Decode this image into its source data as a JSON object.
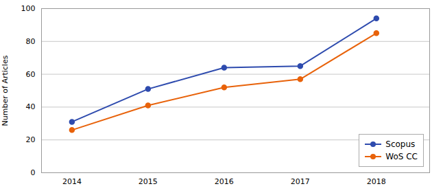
{
  "chart_data": {
    "type": "line",
    "x": [
      2014,
      2015,
      2016,
      2017,
      2018
    ],
    "series": [
      {
        "name": "Scopus",
        "color": "#2E4BAE",
        "values": [
          31,
          51,
          64,
          65,
          94
        ]
      },
      {
        "name": "WoS CC",
        "color": "#E8620A",
        "values": [
          26,
          41,
          52,
          57,
          85
        ]
      }
    ],
    "ylabel": "Number of Articles",
    "xlim": [
      2013.6,
      2018.7
    ],
    "xticks": [
      2014,
      2015,
      2016,
      2017,
      2018
    ],
    "ylim": [
      0,
      100
    ],
    "yticks": [
      0,
      20,
      40,
      60,
      80,
      100
    ],
    "grid": true,
    "legend": "lower right",
    "marker": "circle"
  }
}
